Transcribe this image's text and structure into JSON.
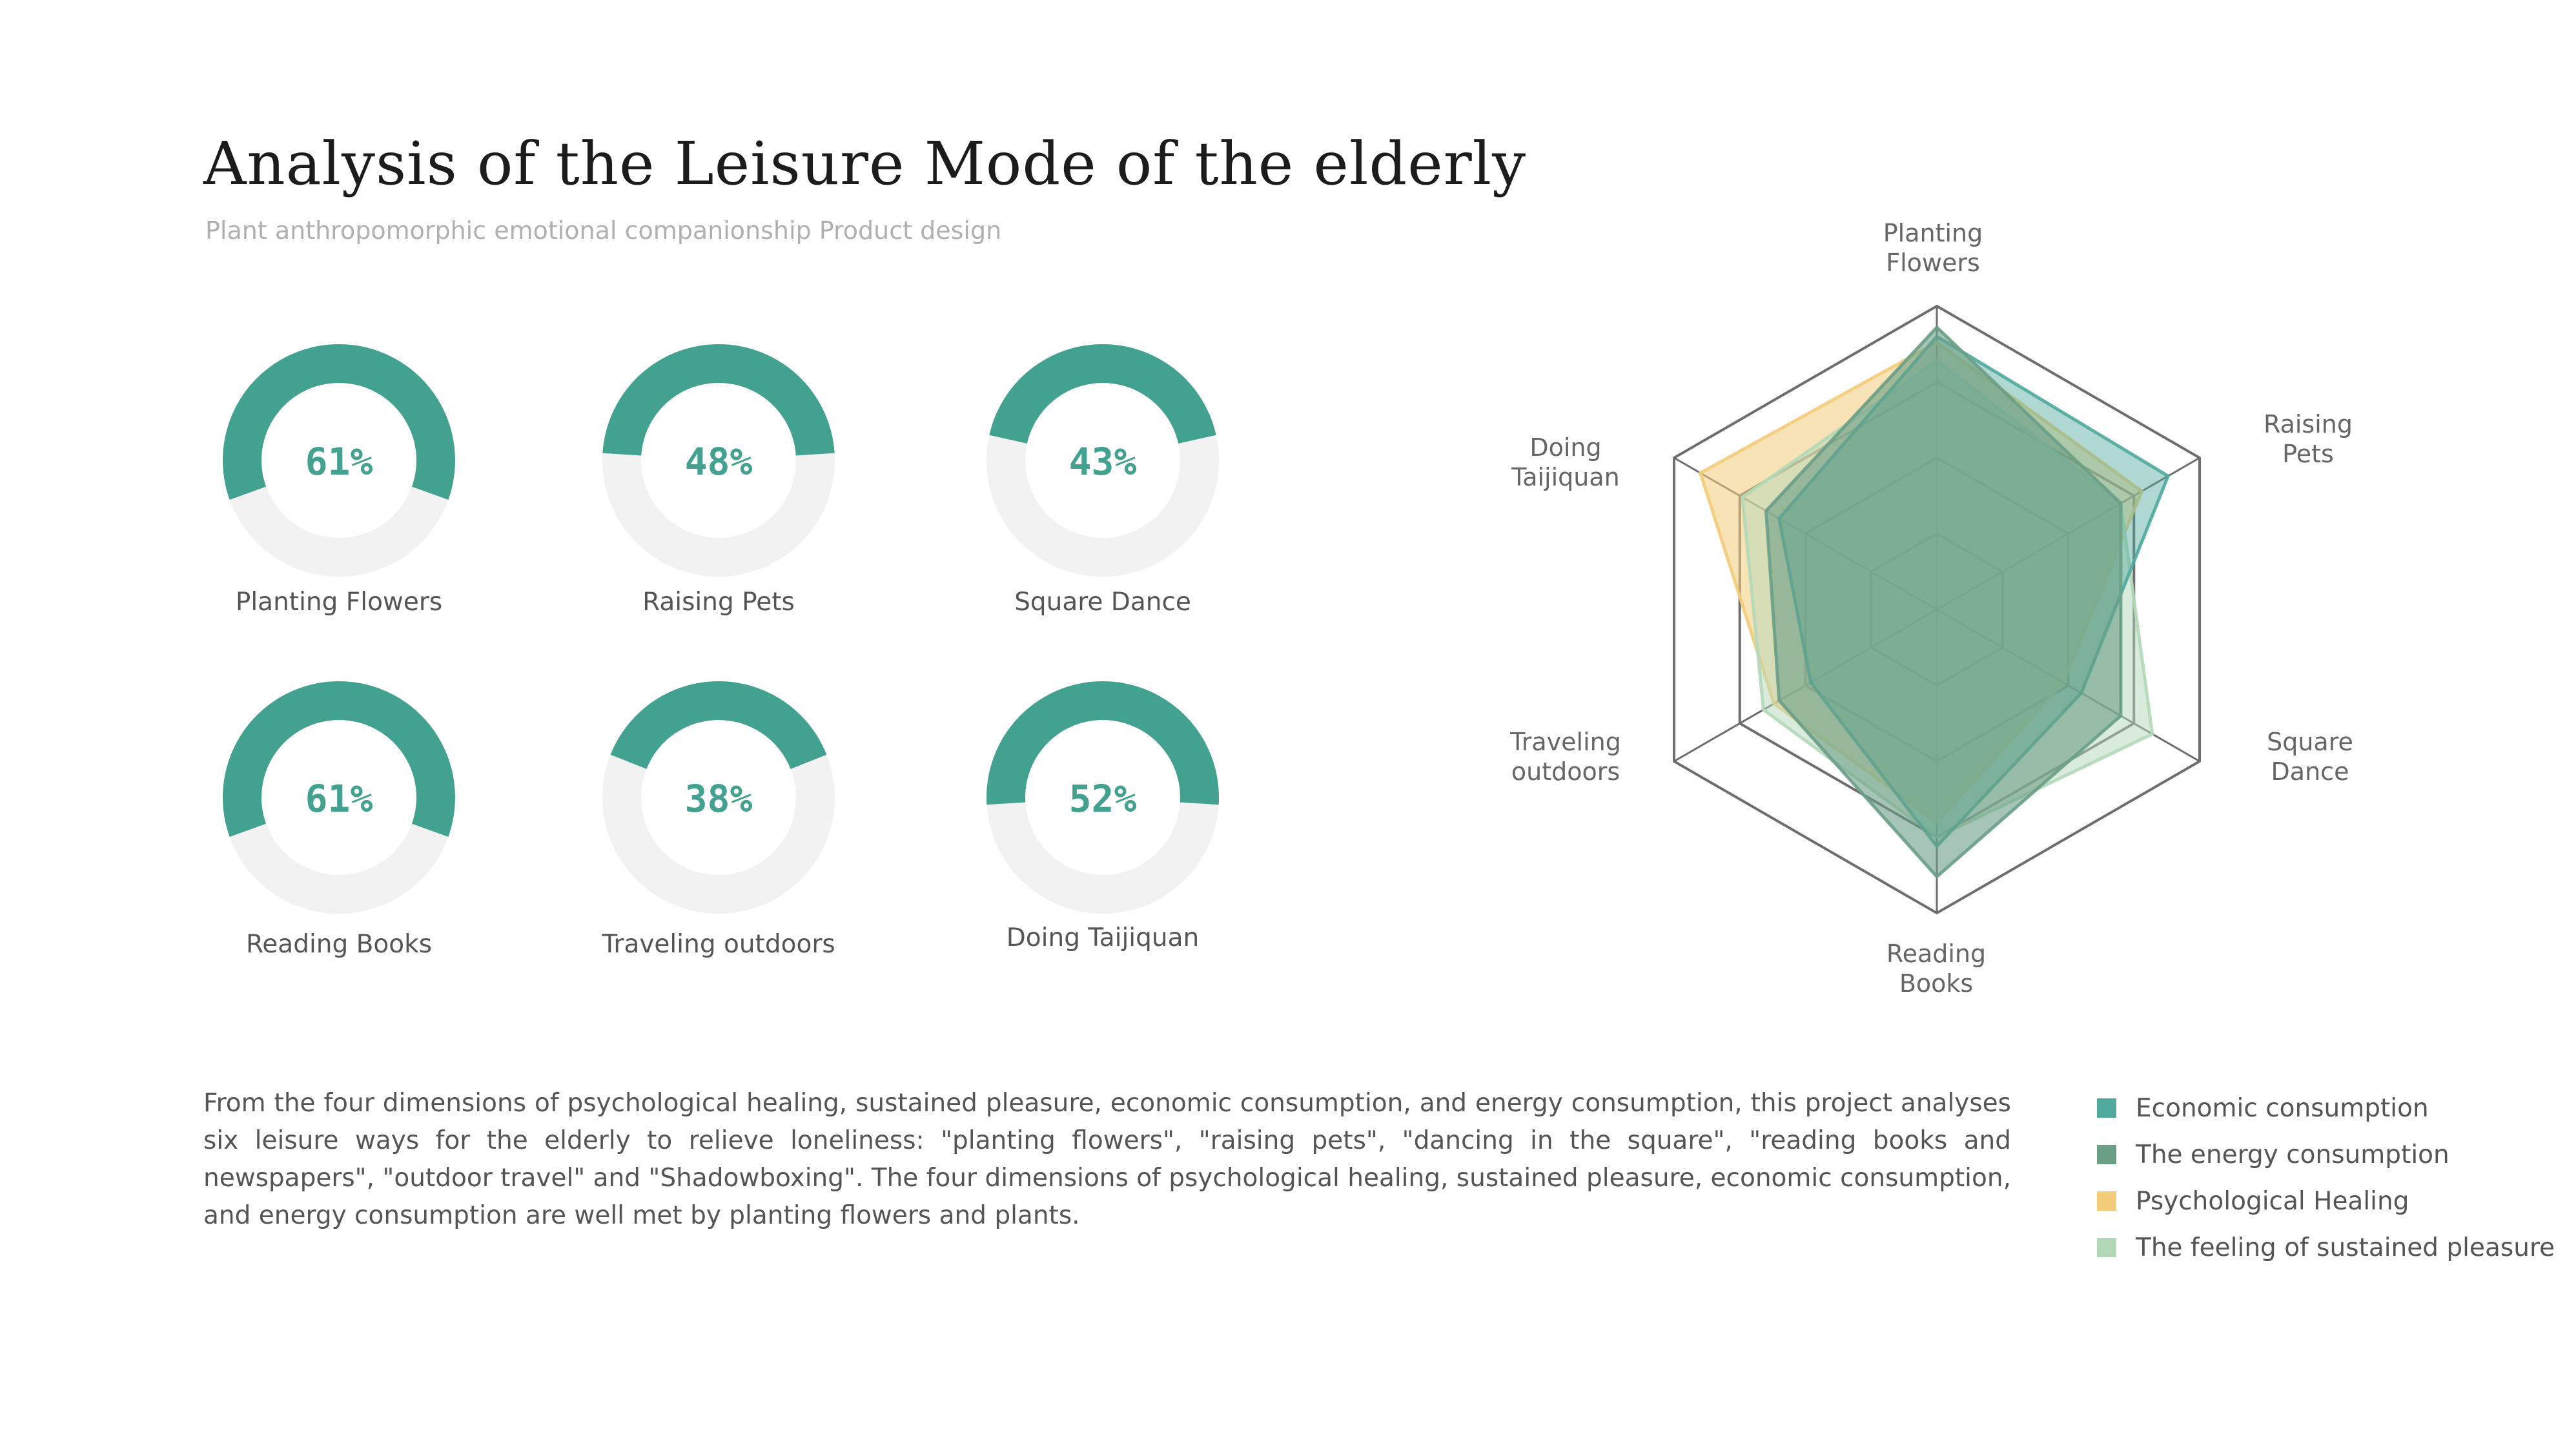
{
  "header": {
    "title": "Analysis of the Leisure Mode of the elderly",
    "subtitle": "Plant anthropomorphic emotional companionship Product design"
  },
  "colors": {
    "teal": "#43a190",
    "ring_bg": "#f2f2f2",
    "grid": "#6e6e6e",
    "economic": "#4fa99c",
    "energy": "#6a9f86",
    "psychological": "#f3cc7a",
    "pleasure": "#b3d8b8"
  },
  "chart_data": [
    {
      "type": "pie",
      "charts": [
        {
          "label": "Planting Flowers",
          "value": 61,
          "display": "61%"
        },
        {
          "label": "Raising Pets",
          "value": 48,
          "display": "48%"
        },
        {
          "label": "Square Dance",
          "value": 43,
          "display": "43%"
        },
        {
          "label": "Reading Books",
          "value": 61,
          "display": "61%"
        },
        {
          "label": "Traveling outdoors",
          "value": 38,
          "display": "38%"
        },
        {
          "label": "Doing Taijiquan",
          "value": 52,
          "display": "52%"
        }
      ]
    },
    {
      "type": "radar",
      "axes": [
        [
          "Planting",
          "Flowers"
        ],
        [
          "Raising",
          "Pets"
        ],
        [
          "Square",
          "Dance"
        ],
        [
          "Reading",
          "Books"
        ],
        [
          "Traveling",
          "outdoors"
        ],
        [
          "Doing",
          "Taijiquan"
        ]
      ],
      "levels": 4,
      "max": 100,
      "series": [
        {
          "name": "Economic consumption",
          "color": "#4fa99c",
          "opacity": 0.45,
          "values": [
            90,
            88,
            55,
            78,
            48,
            60
          ]
        },
        {
          "name": "The energy consumption",
          "color": "#6a9f86",
          "opacity": 0.6,
          "values": [
            93,
            70,
            70,
            88,
            60,
            65
          ]
        },
        {
          "name": "Psychological Healing",
          "color": "#f3cc7a",
          "opacity": 0.55,
          "values": [
            88,
            78,
            48,
            70,
            62,
            90
          ]
        },
        {
          "name": "The feeling of sustained pleasure",
          "color": "#b3d8b8",
          "opacity": 0.5,
          "values": [
            82,
            70,
            82,
            75,
            66,
            74
          ]
        }
      ]
    }
  ],
  "description": "From the four dimensions of psychological healing, sustained pleasure, economic consumption, and energy consumption, this project  analyses six leisure ways for the elderly to relieve loneliness: \"planting flowers\", \"raising pets\", \"dancing in the square\", \"reading books and newspapers\", \"outdoor travel\" and \"Shadowboxing\". The four dimensions of psychological healing, sustained pleasure, economic consumption, and energy consumption are well met by planting flowers and plants."
}
